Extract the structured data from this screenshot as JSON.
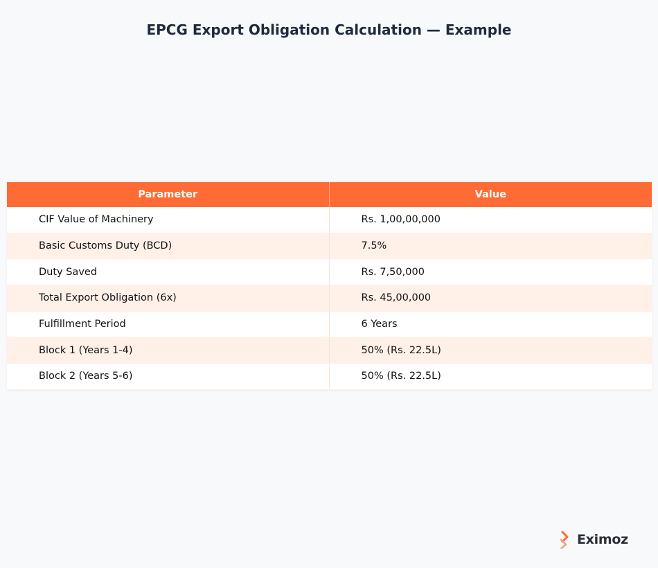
{
  "title": "EPCG Export Obligation Calculation — Example",
  "table": {
    "headers": [
      "Parameter",
      "Value"
    ],
    "rows": [
      [
        "CIF Value of Machinery",
        "Rs. 1,00,00,000"
      ],
      [
        "Basic Customs Duty (BCD)",
        "7.5%"
      ],
      [
        "Duty Saved",
        "Rs. 7,50,000"
      ],
      [
        "Total Export Obligation (6x)",
        "Rs. 45,00,000"
      ],
      [
        "Fulfillment Period",
        "6 Years"
      ],
      [
        "Block 1 (Years 1-4)",
        "50% (Rs. 22.5L)"
      ],
      [
        "Block 2 (Years 5-6)",
        "50% (Rs. 22.5L)"
      ]
    ]
  },
  "logo": {
    "text": "Eximoz",
    "icon": "eximoz-logo-icon"
  },
  "colors": {
    "header": "#ff6b35",
    "row_alt": "#fff0e8",
    "background": "#f8f9fb",
    "title": "#1f2a3c"
  }
}
